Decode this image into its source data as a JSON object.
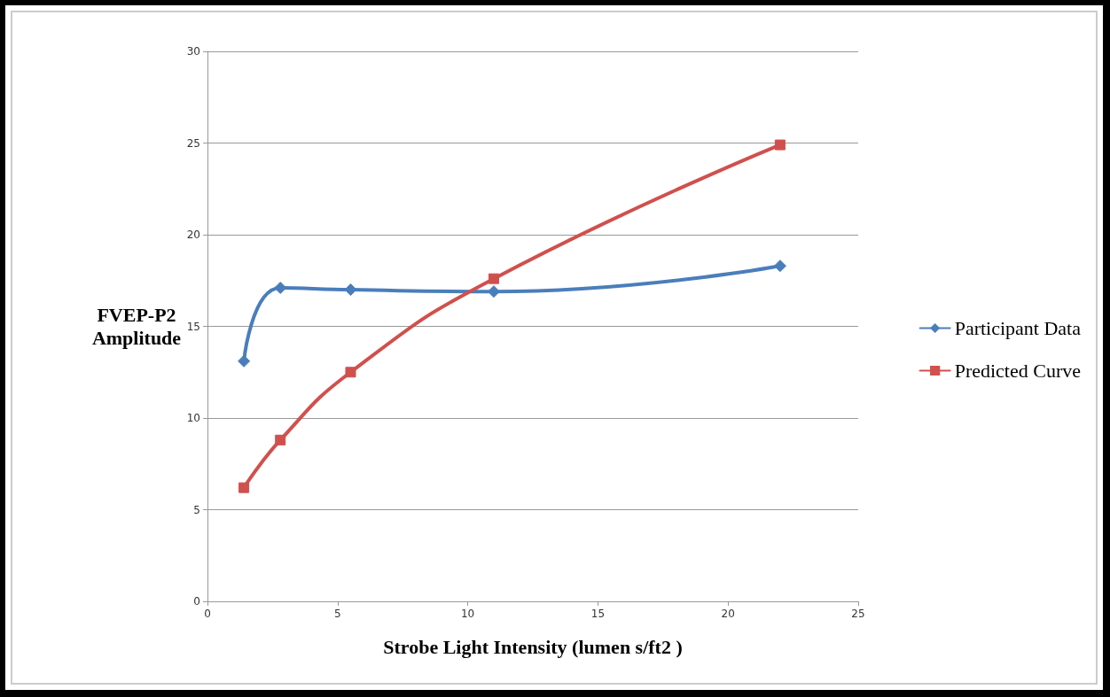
{
  "chart_data": {
    "type": "line",
    "xlabel": "Strobe Light Intensity (lumen s/ft2 )",
    "ylabel": "FVEP-P2\nAmplitude",
    "x": [
      1.4,
      2.8,
      5.5,
      11,
      22
    ],
    "series": [
      {
        "name": "Participant Data",
        "color": "#4a7ebb",
        "marker": "diamond",
        "values": [
          13.1,
          17.1,
          17.0,
          16.9,
          18.3
        ]
      },
      {
        "name": "Predicted Curve",
        "color": "#d0504d",
        "marker": "square",
        "values": [
          6.2,
          8.8,
          12.5,
          17.6,
          24.9
        ]
      }
    ],
    "xlim": [
      0,
      25
    ],
    "xticks": [
      0,
      5,
      10,
      15,
      20,
      25
    ],
    "ylim": [
      0,
      30
    ],
    "yticks": [
      0,
      5,
      10,
      15,
      20,
      25,
      30
    ],
    "grid": "y",
    "legend": "right"
  }
}
